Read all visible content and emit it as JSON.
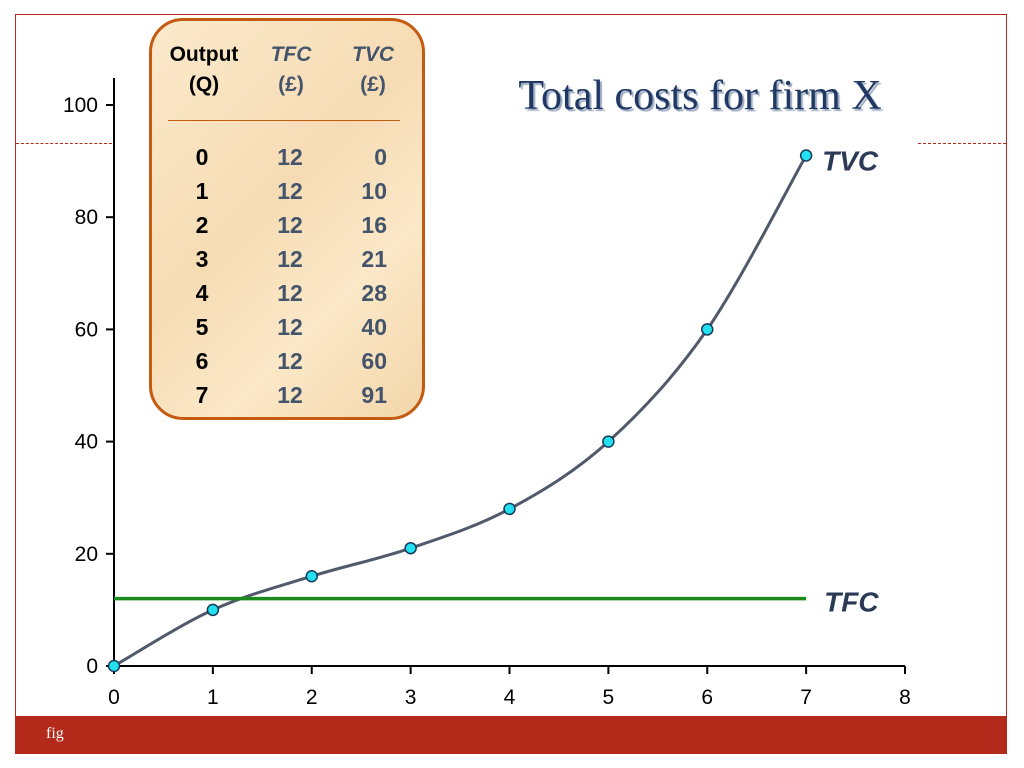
{
  "title": "Total costs for firm X",
  "footer": "fig",
  "colors": {
    "accent": "#b42a1a",
    "tvc_line": "#505a6b",
    "tfc_line": "#1a8a1a",
    "marker_fill": "#22e0f0",
    "title": "#1f3864"
  },
  "table": {
    "headers": [
      {
        "line1": "Output",
        "line2": "(Q)"
      },
      {
        "line1": "TFC",
        "line2": "(£)"
      },
      {
        "line1": "TVC",
        "line2": "(£)"
      }
    ],
    "rows": [
      [
        "0",
        "12",
        "0"
      ],
      [
        "1",
        "12",
        "10"
      ],
      [
        "2",
        "12",
        "16"
      ],
      [
        "3",
        "12",
        "21"
      ],
      [
        "4",
        "12",
        "28"
      ],
      [
        "5",
        "12",
        "40"
      ],
      [
        "6",
        "12",
        "60"
      ],
      [
        "7",
        "12",
        "91"
      ]
    ]
  },
  "chart_data": {
    "type": "line",
    "title": "",
    "xlabel": "",
    "ylabel": "",
    "xlim": [
      0,
      8
    ],
    "ylim": [
      0,
      100
    ],
    "x_ticks": [
      0,
      1,
      2,
      3,
      4,
      5,
      6,
      7,
      8
    ],
    "y_ticks": [
      0,
      20,
      40,
      60,
      80,
      100
    ],
    "grid": false,
    "series": [
      {
        "name": "TVC",
        "x": [
          0,
          1,
          2,
          3,
          4,
          5,
          6,
          7
        ],
        "y": [
          0,
          10,
          16,
          21,
          28,
          40,
          60,
          91
        ],
        "markers": true
      },
      {
        "name": "TFC",
        "x": [
          0,
          7
        ],
        "y": [
          12,
          12
        ],
        "markers": false
      }
    ]
  }
}
